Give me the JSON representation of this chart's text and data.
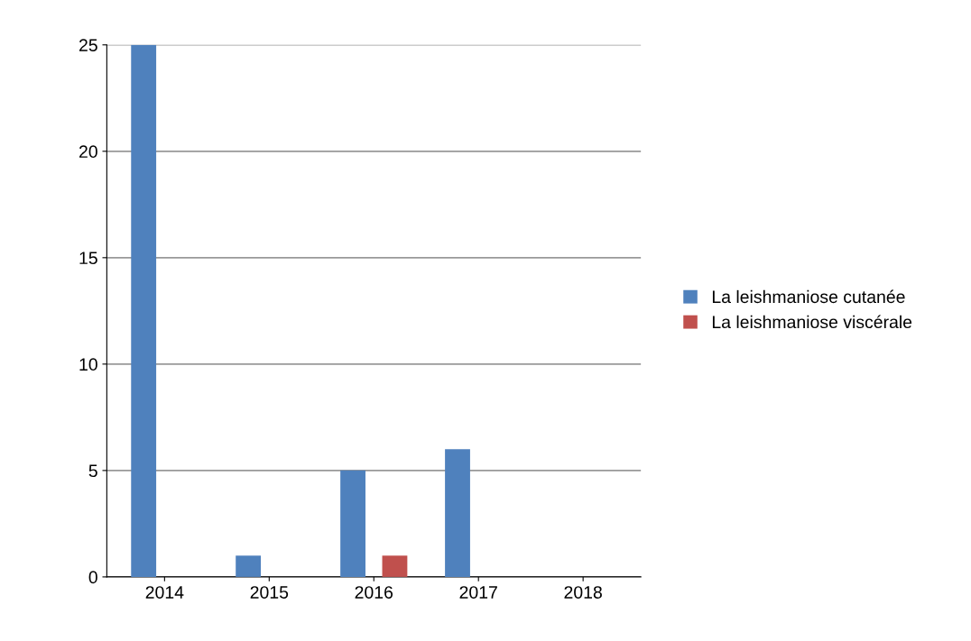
{
  "chart_data": {
    "type": "bar",
    "categories": [
      "2014",
      "2015",
      "2016",
      "2017",
      "2018"
    ],
    "series": [
      {
        "name": "La leishmaniose cutanée",
        "color": "#4f81bd",
        "values": [
          25,
          1,
          5,
          6,
          0
        ]
      },
      {
        "name": "La leishmaniose viscérale",
        "color": "#c0504d",
        "values": [
          0,
          0,
          1,
          0,
          0
        ]
      }
    ],
    "ylim": [
      0,
      25
    ],
    "yticks": [
      0,
      5,
      10,
      15,
      20,
      25
    ],
    "grid": "y",
    "legend": "right"
  }
}
